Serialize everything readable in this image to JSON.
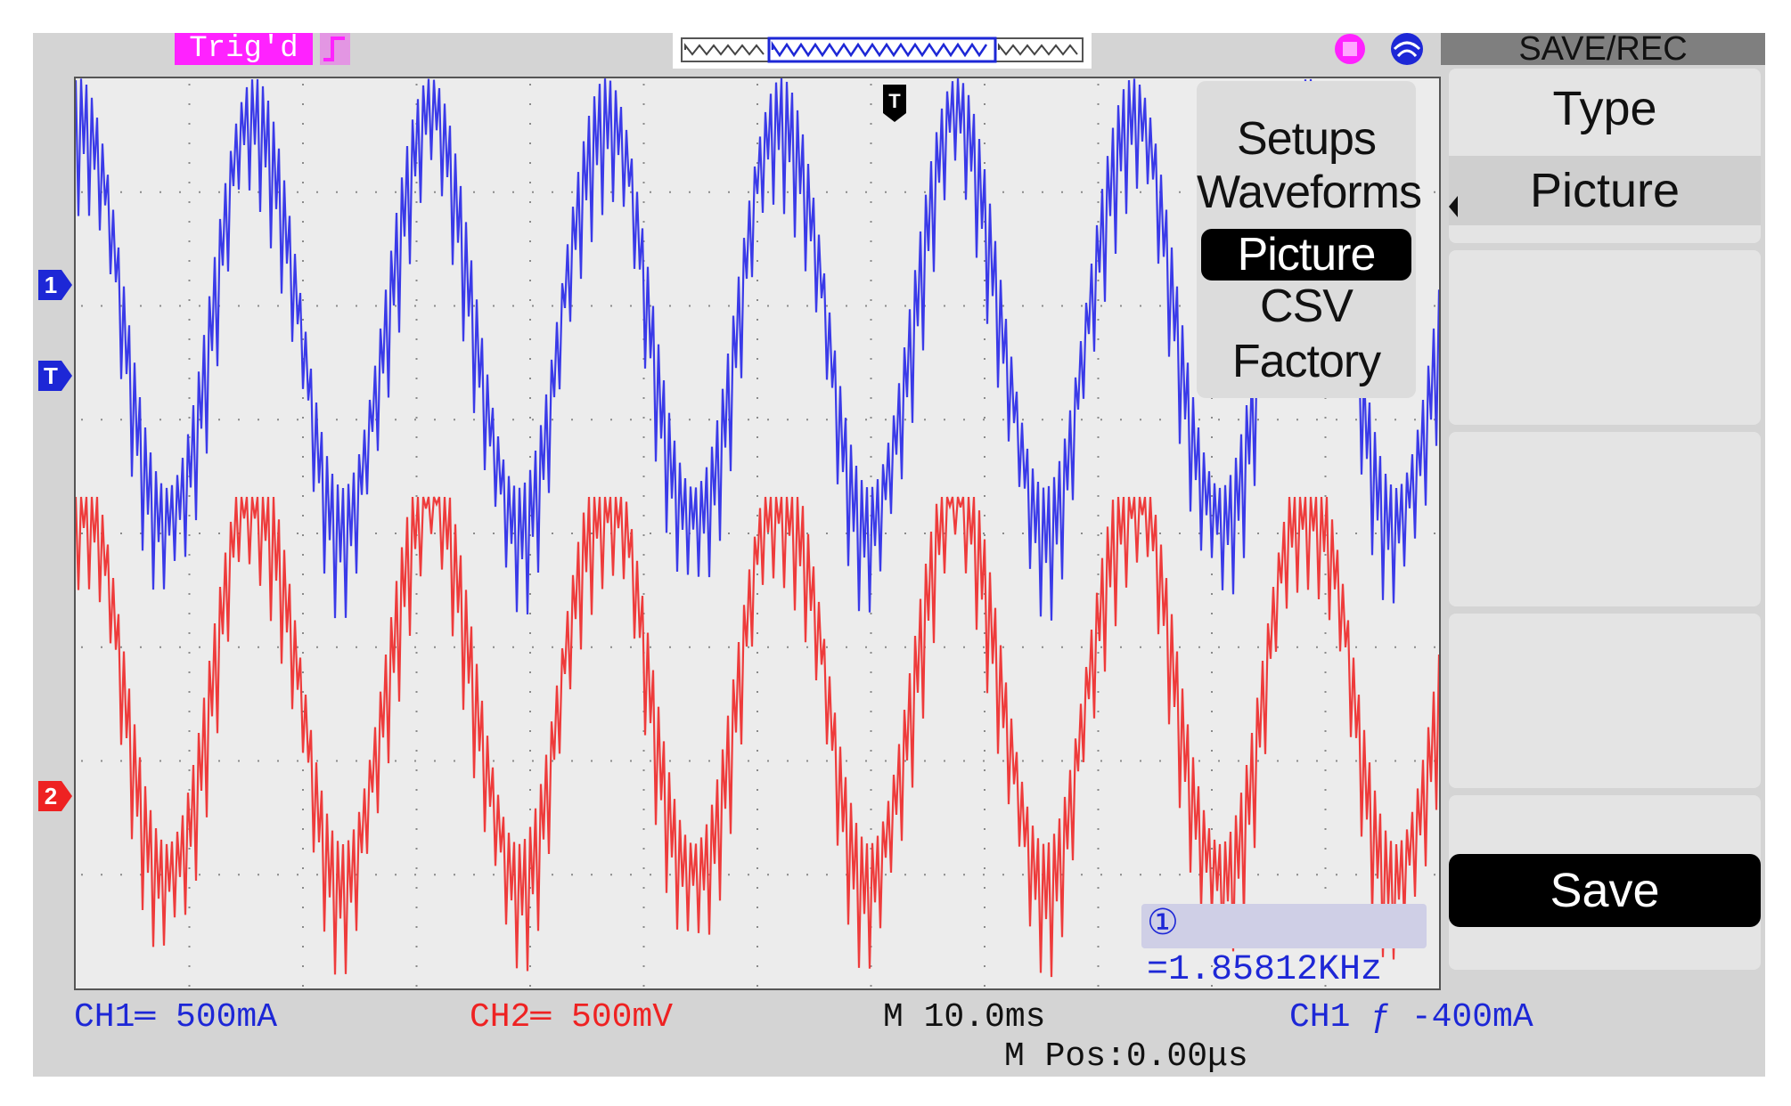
{
  "header": {
    "trigger_status": "Trig'd",
    "side_menu_title": "SAVE/REC"
  },
  "markers": {
    "ch1": "1",
    "trigger_level": "T",
    "ch2": "2",
    "trigger_position": "T"
  },
  "storage_menu": {
    "items": [
      "Setups",
      "Waveforms",
      "Picture",
      "CSV",
      "Factory"
    ],
    "selected": "Picture"
  },
  "softkeys": {
    "type_label": "Type",
    "type_value": "Picture",
    "save_label": "Save"
  },
  "measurement": {
    "frequency": "① =1.85812KHz"
  },
  "status_bar": {
    "ch1_scale": "CH1═ 500mA",
    "ch2_scale": "CH2═ 500mV",
    "timebase": "M 10.0ms",
    "trigger": "CH1 ƒ -400mA",
    "horizontal_position": "M Pos:0.00μs"
  },
  "colors": {
    "ch1": "#3a3ae8",
    "ch2": "#ee3b3b",
    "trigger_badge": "#ff22ff",
    "grid_background": "#ececec",
    "panel_background": "#d4d4d4"
  },
  "icons": [
    "trigger-edge-icon",
    "memory-position-bar",
    "usb-icon",
    "network-icon"
  ]
}
